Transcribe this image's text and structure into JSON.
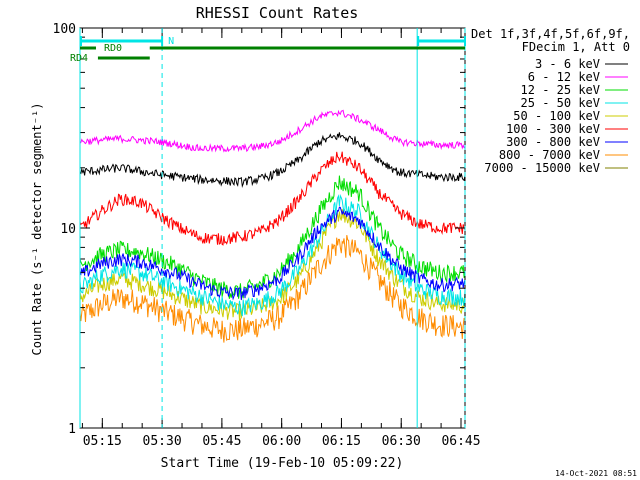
{
  "chart_data": {
    "type": "line",
    "title": "RHESSI Count Rates",
    "xlabel": "Start Time (19-Feb-10 05:09:22)",
    "ylabel": "Count Rate (s⁻¹ detector segment⁻¹)",
    "x_unit": "minutes after 05:09:22",
    "xlim": [
      0,
      96.6
    ],
    "ylim": [
      1,
      100
    ],
    "yscale": "log",
    "x_ticks": [
      {
        "x": 5.6,
        "label": "05:15"
      },
      {
        "x": 20.6,
        "label": "05:30"
      },
      {
        "x": 35.6,
        "label": "05:45"
      },
      {
        "x": 50.6,
        "label": "06:00"
      },
      {
        "x": 65.6,
        "label": "06:15"
      },
      {
        "x": 80.6,
        "label": "06:30"
      },
      {
        "x": 95.6,
        "label": "06:45"
      }
    ],
    "y_ticks": [
      {
        "y": 1,
        "label": "1"
      },
      {
        "y": 10,
        "label": "10"
      },
      {
        "y": 100,
        "label": "100"
      }
    ],
    "legend": {
      "position": "right",
      "header": [
        "Det 1f,3f,4f,5f,6f,9f,",
        "FDecim 1, Att 0"
      ]
    },
    "series": [
      {
        "name": "3 - 6 keV",
        "color": "#000000",
        "x": [
          0,
          10,
          20,
          30,
          40,
          45,
          50,
          55,
          60,
          65,
          70,
          75,
          80,
          90,
          96.6
        ],
        "values": [
          19,
          20,
          18.5,
          17.5,
          17,
          17.5,
          19,
          22,
          27,
          29,
          27,
          22,
          19,
          18,
          18
        ]
      },
      {
        "name": "6 - 12 keV",
        "color": "#ff00ff",
        "x": [
          0,
          10,
          20,
          30,
          40,
          45,
          50,
          55,
          60,
          65,
          70,
          75,
          80,
          90,
          96.6
        ],
        "values": [
          27,
          28,
          27,
          25,
          25,
          25.5,
          27,
          31,
          36,
          38,
          35,
          31,
          27,
          26,
          26
        ]
      },
      {
        "name": "12 - 25 keV",
        "color": "#00dd00",
        "x": [
          0,
          5,
          10,
          15,
          20,
          25,
          30,
          35,
          40,
          45,
          50,
          55,
          60,
          65,
          70,
          75,
          80,
          85,
          90,
          96.6
        ],
        "values": [
          6.5,
          7.3,
          7.8,
          7.6,
          7,
          6.3,
          5.5,
          5,
          4.8,
          5.2,
          6,
          8,
          12,
          17,
          15,
          10,
          7.5,
          6.5,
          6,
          6
        ]
      },
      {
        "name": "25 - 50 keV",
        "color": "#00e5e5",
        "x": [
          0,
          5,
          10,
          15,
          20,
          25,
          30,
          35,
          40,
          45,
          50,
          55,
          60,
          65,
          70,
          75,
          80,
          85,
          90,
          96.6
        ],
        "values": [
          5,
          5.8,
          6.3,
          6,
          5.5,
          5,
          4.6,
          4.2,
          4,
          4.2,
          4.8,
          6.2,
          9,
          13.5,
          12,
          8,
          6,
          5,
          4.6,
          4.5
        ]
      },
      {
        "name": "50 - 100 keV",
        "color": "#cccc00",
        "x": [
          0,
          5,
          10,
          15,
          20,
          25,
          30,
          35,
          40,
          45,
          50,
          55,
          60,
          65,
          70,
          75,
          80,
          85,
          90,
          96.6
        ],
        "values": [
          4.5,
          5.2,
          5.6,
          5.3,
          4.9,
          4.5,
          4.1,
          3.9,
          3.8,
          4,
          4.4,
          5.6,
          8.2,
          12,
          10.5,
          7,
          5.3,
          4.5,
          4.2,
          4.1
        ]
      },
      {
        "name": "100 - 300 keV",
        "color": "#ff0000",
        "x": [
          0,
          5,
          10,
          15,
          20,
          25,
          30,
          35,
          40,
          45,
          50,
          55,
          60,
          62.5,
          65,
          70,
          75,
          80,
          85,
          90,
          96.6
        ],
        "values": [
          10,
          12,
          14,
          13.5,
          11.5,
          10,
          9,
          8.8,
          9,
          9.5,
          11,
          14,
          19,
          21,
          23,
          20,
          15,
          12,
          10.5,
          10,
          10
        ]
      },
      {
        "name": "300 - 800 keV",
        "color": "#0000ff",
        "x": [
          0,
          5,
          10,
          15,
          20,
          25,
          30,
          35,
          40,
          45,
          50,
          55,
          60,
          65,
          70,
          75,
          80,
          85,
          90,
          96.6
        ],
        "values": [
          5.8,
          6.6,
          7,
          6.8,
          6.3,
          5.8,
          5.2,
          4.8,
          4.7,
          5,
          5.6,
          7.2,
          10,
          12,
          11,
          8.2,
          6.4,
          5.6,
          5.2,
          5.3
        ]
      },
      {
        "name": "800 - 7000 keV",
        "color": "#ff8c00",
        "x": [
          0,
          5,
          10,
          15,
          20,
          25,
          30,
          35,
          40,
          45,
          50,
          55,
          60,
          65,
          70,
          75,
          80,
          85,
          90,
          96.6
        ],
        "values": [
          3.6,
          4.1,
          4.5,
          4.3,
          3.9,
          3.6,
          3.3,
          3.1,
          3.1,
          3.3,
          3.6,
          4.6,
          6.5,
          8.5,
          7.5,
          5.5,
          4.2,
          3.6,
          3.3,
          3.2
        ]
      },
      {
        "name": "7000 - 15000 keV",
        "color": "#808000",
        "x": [],
        "values": []
      }
    ],
    "annotations": {
      "attenuator_label": "N",
      "attenuator_intervals": [
        [
          0,
          20.6
        ],
        [
          84.6,
          96.6
        ]
      ],
      "attenuator_color": "#00e5e5",
      "boundary_lines_x": [
        0,
        20.6,
        84.6,
        96.6
      ],
      "rd_bars": [
        {
          "label": "RD0",
          "color": "#008000",
          "x_start": 17.5,
          "x_end": 96.6
        },
        {
          "label": "RD4",
          "color": "#008000",
          "x_start": 4.5,
          "x_end": 17.5
        }
      ]
    }
  },
  "footer_date": "14-Oct-2021 08:51"
}
